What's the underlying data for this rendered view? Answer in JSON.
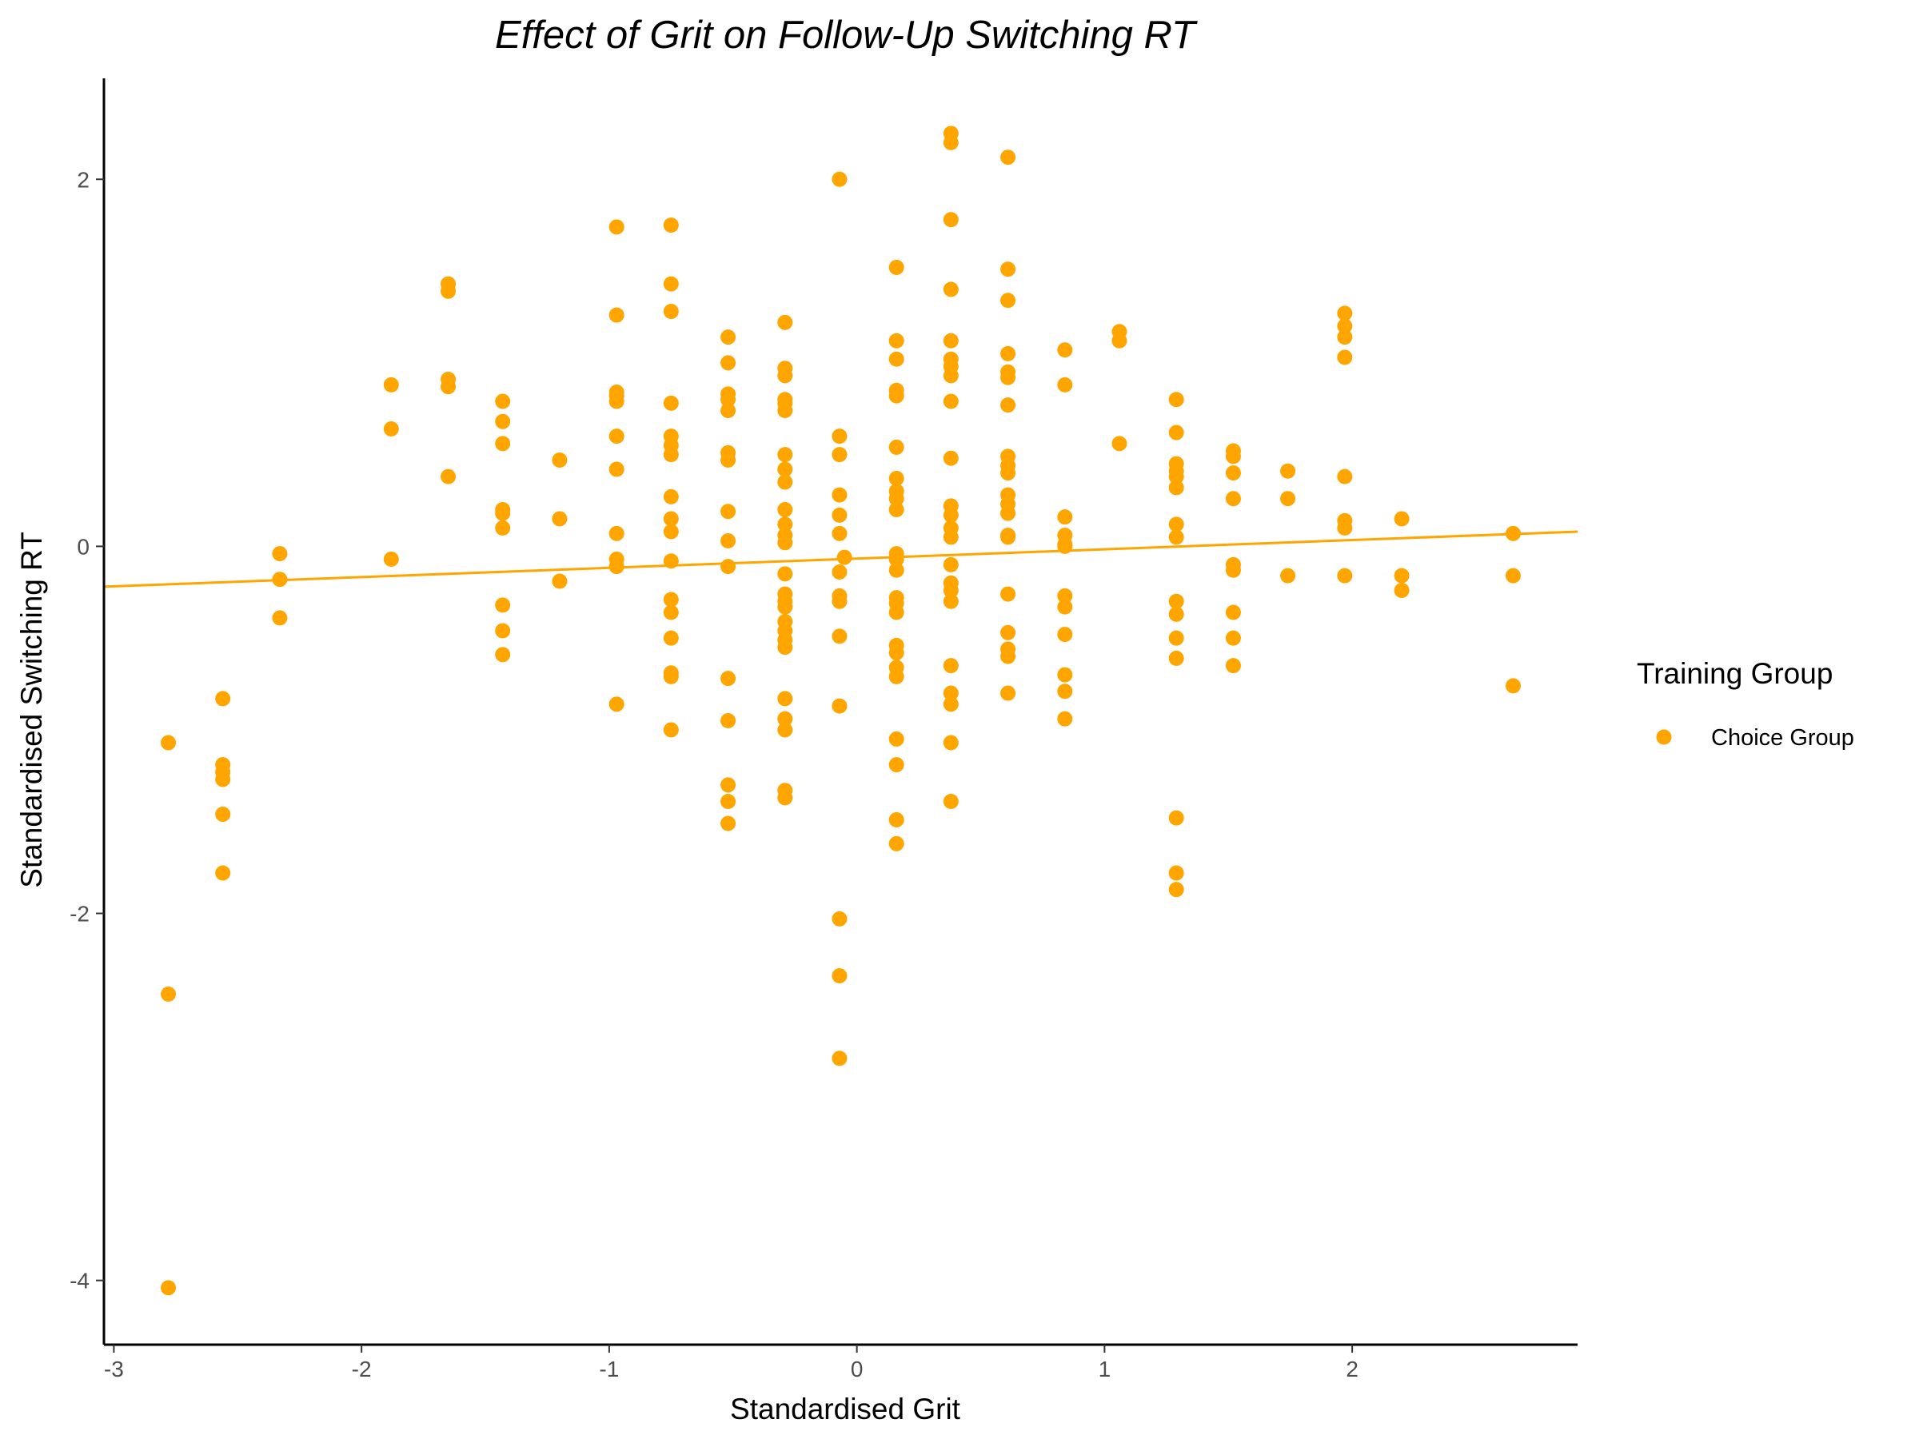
{
  "chart_data": {
    "type": "scatter",
    "title": "Effect of Grit on Follow-Up Switching RT",
    "xlabel": "Standardised Grit",
    "ylabel": "Standardised Switching RT",
    "xlim": [
      -3.04,
      2.91
    ],
    "ylim": [
      -4.35,
      2.55
    ],
    "xticks": [
      -3,
      -2,
      -1,
      0,
      1,
      2
    ],
    "yticks": [
      -4,
      -2,
      0,
      2
    ],
    "grid": false,
    "legend": {
      "title": "Training Group",
      "position": "right",
      "entries": [
        {
          "name": "Choice Group",
          "color": "#FFA500"
        }
      ]
    },
    "trend_line": {
      "x": [
        -3.04,
        2.91
      ],
      "y": [
        -0.22,
        0.08
      ],
      "color": "#FFA500"
    },
    "series": [
      {
        "name": "Choice Group",
        "color": "#FFA500",
        "points": [
          [
            -2.78,
            -1.07
          ],
          [
            -2.78,
            -2.44
          ],
          [
            -2.78,
            -4.04
          ],
          [
            -2.56,
            -0.83
          ],
          [
            -2.56,
            -1.19
          ],
          [
            -2.56,
            -1.23
          ],
          [
            -2.56,
            -1.27
          ],
          [
            -2.56,
            -1.46
          ],
          [
            -2.56,
            -1.78
          ],
          [
            -2.33,
            -0.04
          ],
          [
            -2.33,
            -0.18
          ],
          [
            -2.33,
            -0.39
          ],
          [
            -1.88,
            0.88
          ],
          [
            -1.88,
            0.64
          ],
          [
            -1.88,
            -0.07
          ],
          [
            -1.65,
            1.43
          ],
          [
            -1.65,
            1.39
          ],
          [
            -1.65,
            0.91
          ],
          [
            -1.65,
            0.87
          ],
          [
            -1.65,
            0.38
          ],
          [
            -1.43,
            0.79
          ],
          [
            -1.43,
            0.68
          ],
          [
            -1.43,
            0.56
          ],
          [
            -1.43,
            0.2
          ],
          [
            -1.43,
            0.18
          ],
          [
            -1.43,
            0.1
          ],
          [
            -1.43,
            -0.32
          ],
          [
            -1.43,
            -0.46
          ],
          [
            -1.43,
            -0.59
          ],
          [
            -1.2,
            0.47
          ],
          [
            -1.2,
            0.15
          ],
          [
            -1.2,
            -0.19
          ],
          [
            -0.97,
            1.74
          ],
          [
            -0.97,
            1.26
          ],
          [
            -0.97,
            0.84
          ],
          [
            -0.97,
            0.82
          ],
          [
            -0.97,
            0.79
          ],
          [
            -0.97,
            0.6
          ],
          [
            -0.97,
            0.42
          ],
          [
            -0.97,
            0.07
          ],
          [
            -0.97,
            -0.07
          ],
          [
            -0.97,
            -0.11
          ],
          [
            -0.97,
            -0.86
          ],
          [
            -0.75,
            1.75
          ],
          [
            -0.75,
            1.43
          ],
          [
            -0.75,
            1.28
          ],
          [
            -0.75,
            0.78
          ],
          [
            -0.75,
            0.6
          ],
          [
            -0.75,
            0.55
          ],
          [
            -0.75,
            0.5
          ],
          [
            -0.75,
            0.27
          ],
          [
            -0.75,
            0.15
          ],
          [
            -0.75,
            0.08
          ],
          [
            -0.75,
            -0.08
          ],
          [
            -0.75,
            -0.29
          ],
          [
            -0.75,
            -0.36
          ],
          [
            -0.75,
            -0.5
          ],
          [
            -0.75,
            -0.69
          ],
          [
            -0.75,
            -0.71
          ],
          [
            -0.75,
            -1.0
          ],
          [
            -0.52,
            1.14
          ],
          [
            -0.52,
            1.0
          ],
          [
            -0.52,
            0.83
          ],
          [
            -0.52,
            0.8
          ],
          [
            -0.52,
            0.74
          ],
          [
            -0.52,
            0.51
          ],
          [
            -0.52,
            0.47
          ],
          [
            -0.52,
            0.19
          ],
          [
            -0.52,
            0.03
          ],
          [
            -0.52,
            -0.11
          ],
          [
            -0.52,
            -0.72
          ],
          [
            -0.52,
            -0.95
          ],
          [
            -0.52,
            -1.3
          ],
          [
            -0.52,
            -1.39
          ],
          [
            -0.52,
            -1.51
          ],
          [
            -0.29,
            1.22
          ],
          [
            -0.29,
            0.97
          ],
          [
            -0.29,
            0.93
          ],
          [
            -0.29,
            0.8
          ],
          [
            -0.29,
            0.78
          ],
          [
            -0.29,
            0.74
          ],
          [
            -0.29,
            0.5
          ],
          [
            -0.29,
            0.42
          ],
          [
            -0.29,
            0.35
          ],
          [
            -0.29,
            0.2
          ],
          [
            -0.29,
            0.12
          ],
          [
            -0.29,
            0.06
          ],
          [
            -0.29,
            0.02
          ],
          [
            -0.29,
            -0.15
          ],
          [
            -0.29,
            -0.26
          ],
          [
            -0.29,
            -0.3
          ],
          [
            -0.29,
            -0.33
          ],
          [
            -0.29,
            -0.41
          ],
          [
            -0.29,
            -0.46
          ],
          [
            -0.29,
            -0.51
          ],
          [
            -0.29,
            -0.55
          ],
          [
            -0.29,
            -0.83
          ],
          [
            -0.29,
            -0.94
          ],
          [
            -0.29,
            -1.0
          ],
          [
            -0.29,
            -1.33
          ],
          [
            -0.29,
            -1.37
          ],
          [
            -0.07,
            2.0
          ],
          [
            -0.07,
            0.6
          ],
          [
            -0.07,
            0.5
          ],
          [
            -0.07,
            0.28
          ],
          [
            -0.07,
            0.17
          ],
          [
            -0.07,
            0.07
          ],
          [
            -0.07,
            -0.14
          ],
          [
            -0.07,
            -0.27
          ],
          [
            -0.07,
            -0.3
          ],
          [
            -0.07,
            -0.49
          ],
          [
            -0.07,
            -0.87
          ],
          [
            -0.07,
            -2.03
          ],
          [
            -0.07,
            -2.34
          ],
          [
            -0.07,
            -2.79
          ],
          [
            0.16,
            1.52
          ],
          [
            0.16,
            1.12
          ],
          [
            0.16,
            1.02
          ],
          [
            0.16,
            0.85
          ],
          [
            0.16,
            0.82
          ],
          [
            0.16,
            0.54
          ],
          [
            0.16,
            0.37
          ],
          [
            0.16,
            0.3
          ],
          [
            0.16,
            0.26
          ],
          [
            0.16,
            0.2
          ],
          [
            0.16,
            -0.04
          ],
          [
            -0.05,
            -0.06
          ],
          [
            0.16,
            -0.07
          ],
          [
            0.16,
            -0.13
          ],
          [
            0.16,
            -0.28
          ],
          [
            0.16,
            -0.31
          ],
          [
            0.16,
            -0.36
          ],
          [
            0.16,
            -0.54
          ],
          [
            0.16,
            -0.58
          ],
          [
            0.16,
            -0.66
          ],
          [
            0.16,
            -0.71
          ],
          [
            0.16,
            -1.05
          ],
          [
            0.16,
            -1.19
          ],
          [
            0.16,
            -1.49
          ],
          [
            0.16,
            -1.62
          ],
          [
            0.38,
            2.25
          ],
          [
            0.38,
            2.2
          ],
          [
            0.38,
            1.78
          ],
          [
            0.38,
            1.4
          ],
          [
            0.38,
            1.12
          ],
          [
            0.38,
            1.02
          ],
          [
            0.38,
            0.98
          ],
          [
            0.38,
            0.93
          ],
          [
            0.38,
            0.79
          ],
          [
            0.38,
            0.48
          ],
          [
            0.38,
            0.22
          ],
          [
            0.38,
            0.17
          ],
          [
            0.38,
            0.1
          ],
          [
            0.38,
            0.05
          ],
          [
            0.38,
            -0.1
          ],
          [
            0.38,
            -0.2
          ],
          [
            0.38,
            -0.24
          ],
          [
            0.38,
            -0.3
          ],
          [
            0.38,
            -0.65
          ],
          [
            0.38,
            -0.8
          ],
          [
            0.38,
            -0.86
          ],
          [
            0.38,
            -1.07
          ],
          [
            0.38,
            -1.39
          ],
          [
            0.61,
            2.12
          ],
          [
            0.61,
            1.51
          ],
          [
            0.61,
            1.34
          ],
          [
            0.61,
            1.05
          ],
          [
            0.61,
            0.95
          ],
          [
            0.61,
            0.92
          ],
          [
            0.61,
            0.77
          ],
          [
            0.61,
            0.49
          ],
          [
            0.61,
            0.44
          ],
          [
            0.61,
            0.4
          ],
          [
            0.61,
            0.28
          ],
          [
            0.61,
            0.23
          ],
          [
            0.61,
            0.18
          ],
          [
            0.61,
            0.06
          ],
          [
            0.61,
            0.05
          ],
          [
            0.61,
            -0.26
          ],
          [
            0.61,
            -0.47
          ],
          [
            0.61,
            -0.56
          ],
          [
            0.61,
            -0.6
          ],
          [
            0.61,
            -0.8
          ],
          [
            0.84,
            1.07
          ],
          [
            0.84,
            0.88
          ],
          [
            0.84,
            0.16
          ],
          [
            0.84,
            0.06
          ],
          [
            0.84,
            0.01
          ],
          [
            0.84,
            0.0
          ],
          [
            0.84,
            -0.27
          ],
          [
            0.84,
            -0.33
          ],
          [
            0.84,
            -0.48
          ],
          [
            0.84,
            -0.7
          ],
          [
            0.84,
            -0.79
          ],
          [
            0.84,
            -0.94
          ],
          [
            1.06,
            1.17
          ],
          [
            1.06,
            1.12
          ],
          [
            1.06,
            0.56
          ],
          [
            1.29,
            0.8
          ],
          [
            1.29,
            0.62
          ],
          [
            1.29,
            0.45
          ],
          [
            1.29,
            0.41
          ],
          [
            1.29,
            0.38
          ],
          [
            1.29,
            0.32
          ],
          [
            1.29,
            0.12
          ],
          [
            1.29,
            0.05
          ],
          [
            1.29,
            -0.3
          ],
          [
            1.29,
            -0.37
          ],
          [
            1.29,
            -0.5
          ],
          [
            1.29,
            -0.61
          ],
          [
            1.29,
            -1.48
          ],
          [
            1.29,
            -1.78
          ],
          [
            1.29,
            -1.87
          ],
          [
            1.52,
            0.52
          ],
          [
            1.52,
            0.49
          ],
          [
            1.52,
            0.4
          ],
          [
            1.52,
            0.26
          ],
          [
            1.52,
            -0.1
          ],
          [
            1.52,
            -0.13
          ],
          [
            1.52,
            -0.36
          ],
          [
            1.52,
            -0.5
          ],
          [
            1.52,
            -0.65
          ],
          [
            1.74,
            0.41
          ],
          [
            1.74,
            0.26
          ],
          [
            1.74,
            -0.16
          ],
          [
            1.97,
            1.27
          ],
          [
            1.97,
            1.2
          ],
          [
            1.97,
            1.14
          ],
          [
            1.97,
            1.03
          ],
          [
            1.97,
            0.38
          ],
          [
            1.97,
            0.14
          ],
          [
            1.97,
            0.1
          ],
          [
            1.97,
            -0.16
          ],
          [
            2.2,
            0.15
          ],
          [
            2.2,
            -0.16
          ],
          [
            2.2,
            -0.24
          ],
          [
            2.65,
            0.07
          ],
          [
            2.65,
            -0.16
          ],
          [
            2.65,
            -0.76
          ]
        ]
      }
    ]
  }
}
